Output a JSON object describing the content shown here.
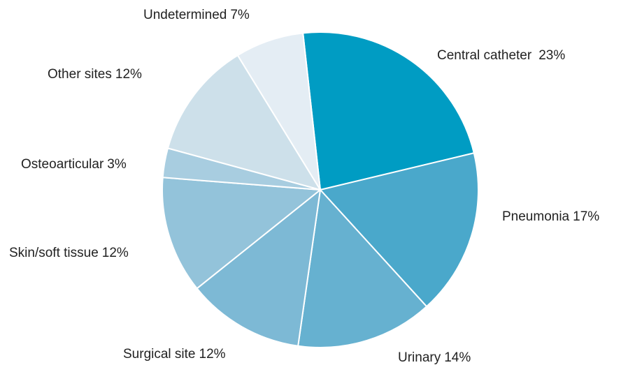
{
  "chart_data": {
    "type": "pie",
    "categories": [
      "Central catheter",
      "Pneumonia",
      "Urinary",
      "Surgical site",
      "Skin/soft tissue",
      "Osteoarticular",
      "Other sites",
      "Undetermined"
    ],
    "values": [
      23,
      17,
      14,
      12,
      12,
      3,
      12,
      7
    ],
    "value_labels": [
      "23%",
      "17%",
      "14%",
      "12%",
      "12%",
      "3%",
      "12%",
      "7%"
    ],
    "colors": [
      "#009cc3",
      "#4aa8cb",
      "#66b1d0",
      "#7db9d5",
      "#93c3da",
      "#a8cde0",
      "#cde0ea",
      "#e4edf4"
    ]
  }
}
